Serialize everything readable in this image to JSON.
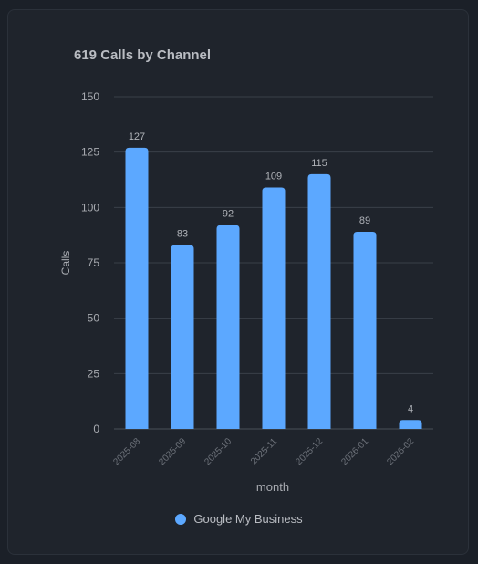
{
  "colors": {
    "bar": "#5ca8ff",
    "grid": "#3a4049",
    "axis_text": "#a8abb1",
    "tick_text_x": "#6e737b",
    "label_text": "#b0b3b9"
  },
  "chart_data": {
    "type": "bar",
    "title": "619 Calls by Channel",
    "xlabel": "month",
    "ylabel": "Calls",
    "categories": [
      "2025-08",
      "2025-09",
      "2025-10",
      "2025-11",
      "2025-12",
      "2026-01",
      "2026-02"
    ],
    "series": [
      {
        "name": "Google My Business",
        "values": [
          127,
          83,
          92,
          109,
          115,
          89,
          4
        ]
      }
    ],
    "ylim": [
      0,
      150
    ],
    "yticks": [
      0,
      25,
      50,
      75,
      100,
      125,
      150
    ],
    "grid": true,
    "legend_position": "bottom"
  }
}
